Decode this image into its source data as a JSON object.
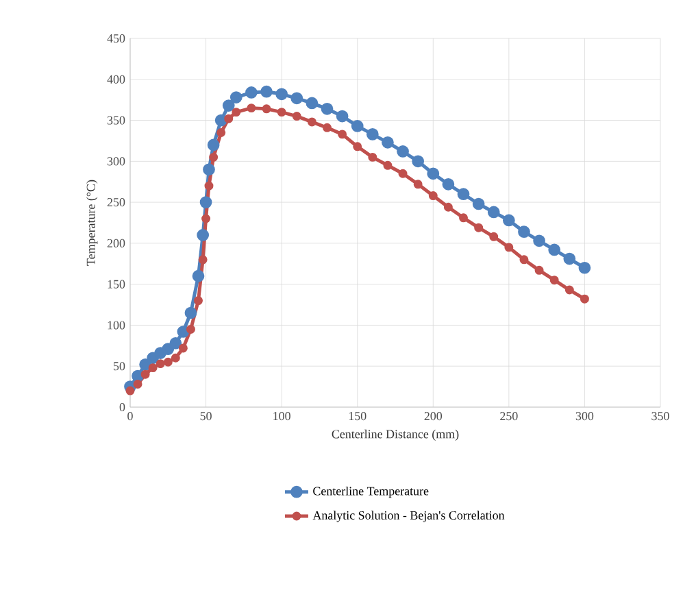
{
  "chart_data": {
    "type": "line",
    "xlabel": "Centerline Distance (mm)",
    "ylabel": "Temperature (°C)",
    "xlim": [
      0,
      350
    ],
    "xticks": [
      0,
      50,
      100,
      150,
      200,
      250,
      300,
      350
    ],
    "ylim": [
      0,
      450
    ],
    "yticks": [
      0,
      50,
      100,
      150,
      200,
      250,
      300,
      350,
      400,
      450
    ],
    "grid": true,
    "legend": "bottom",
    "marker": "circle",
    "line_style": "solid",
    "series": [
      {
        "name": "Centerline Temperature",
        "color": "#4f81bd",
        "x": [
          0,
          5,
          10,
          15,
          20,
          25,
          30,
          35,
          40,
          45,
          48,
          50,
          52,
          55,
          60,
          65,
          70,
          80,
          90,
          100,
          110,
          120,
          130,
          140,
          150,
          160,
          170,
          180,
          190,
          200,
          210,
          220,
          230,
          240,
          250,
          260,
          270,
          280,
          290,
          300
        ],
        "values": [
          25,
          38,
          52,
          60,
          66,
          71,
          78,
          92,
          115,
          160,
          210,
          250,
          290,
          320,
          350,
          368,
          378,
          384,
          385,
          382,
          377,
          371,
          364,
          355,
          343,
          333,
          323,
          312,
          300,
          285,
          272,
          260,
          248,
          238,
          228,
          214,
          203,
          192,
          181,
          170
        ]
      },
      {
        "name": "Analytic Solution - Bejan's Correlation",
        "color": "#c0504d",
        "x": [
          0,
          5,
          10,
          15,
          20,
          25,
          30,
          35,
          40,
          45,
          48,
          50,
          52,
          55,
          60,
          65,
          70,
          80,
          90,
          100,
          110,
          120,
          130,
          140,
          150,
          160,
          170,
          180,
          190,
          200,
          210,
          220,
          230,
          240,
          250,
          260,
          270,
          280,
          290,
          300
        ],
        "values": [
          20,
          28,
          40,
          48,
          53,
          55,
          60,
          72,
          95,
          130,
          180,
          230,
          270,
          305,
          335,
          352,
          360,
          365,
          364,
          360,
          355,
          348,
          341,
          333,
          318,
          305,
          295,
          285,
          272,
          258,
          244,
          231,
          219,
          208,
          195,
          180,
          167,
          155,
          143,
          132
        ]
      }
    ]
  }
}
